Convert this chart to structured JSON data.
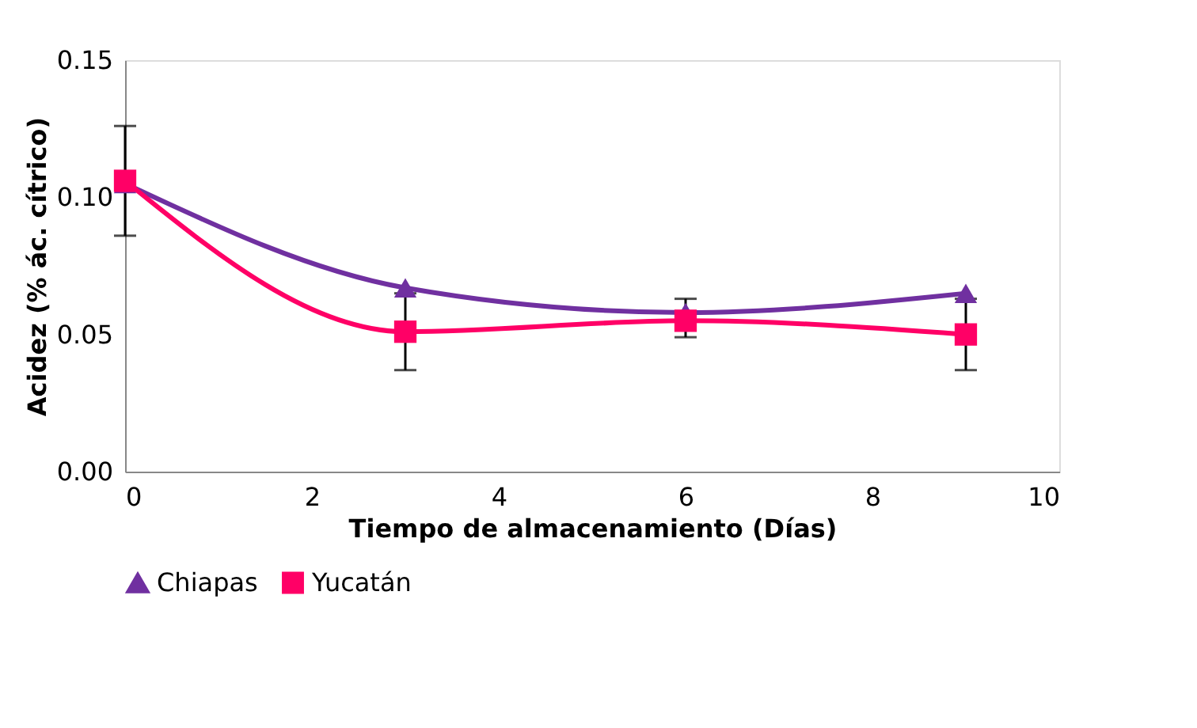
{
  "chart_data": {
    "type": "line",
    "xlabel": "Tiempo de almacenamiento (Días)",
    "ylabel": "Acidez (% ác. cítrico)",
    "x": [
      0,
      3,
      6,
      9
    ],
    "series": [
      {
        "name": "Chiapas",
        "color": "#7030a0",
        "marker": "triangle",
        "values": [
          0.105,
          0.067,
          0.058,
          0.065
        ]
      },
      {
        "name": "Yucatán",
        "color": "#ff0066",
        "marker": "square",
        "values": [
          0.106,
          0.051,
          0.055,
          0.05
        ],
        "errors": [
          [
            0.086,
            0.126
          ],
          [
            0.037,
            0.065
          ],
          [
            0.049,
            0.063
          ],
          [
            0.037,
            0.063
          ]
        ]
      }
    ],
    "xlim": [
      0,
      10
    ],
    "xticks": [
      0,
      2,
      4,
      6,
      8,
      10
    ],
    "ylim": [
      0,
      0.15
    ],
    "yticks": [
      {
        "value": 0,
        "label": "0.00"
      },
      0.05,
      {
        "value": 0.1,
        "label": "0.10"
      },
      0.15
    ],
    "grid": false,
    "legend": "bottom"
  }
}
